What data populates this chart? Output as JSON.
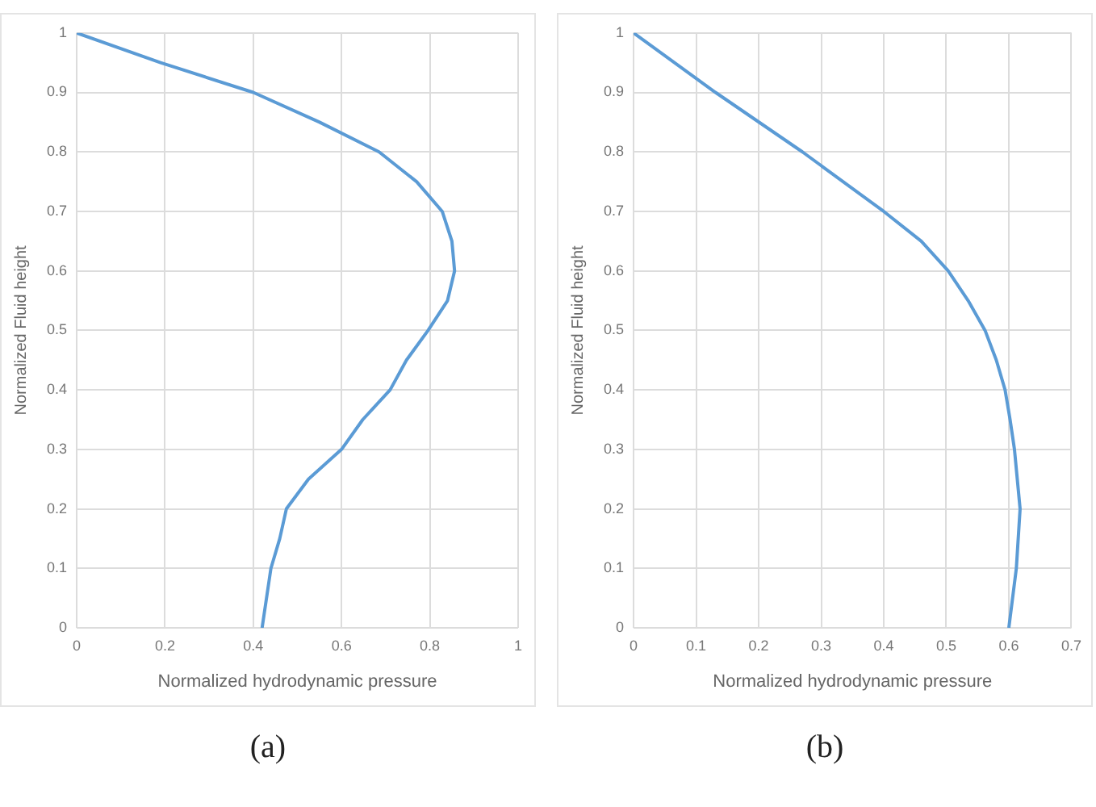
{
  "chart_data": [
    {
      "type": "line",
      "xlabel": "Normalized hydrodynamic pressure",
      "ylabel": "Normalized Fluid height",
      "annotations": [
        "(a)"
      ],
      "series": [
        {
          "color": "#5b9bd5",
          "x": [
            0.42,
            0.44,
            0.46,
            0.475,
            0.525,
            0.6,
            0.648,
            0.71,
            0.747,
            0.796,
            0.84,
            0.856,
            0.85,
            0.828,
            0.77,
            0.685,
            0.55,
            0.4,
            0.19,
            0
          ],
          "values": [
            0,
            0.1,
            0.15,
            0.2,
            0.25,
            0.3,
            0.35,
            0.4,
            0.45,
            0.5,
            0.55,
            0.6,
            0.65,
            0.7,
            0.75,
            0.8,
            0.85,
            0.9,
            0.95,
            1
          ]
        }
      ],
      "xlim": [
        0,
        1
      ],
      "xticks": [
        0,
        0.2,
        0.4,
        0.6,
        0.8,
        1
      ],
      "ylim": [
        0,
        1
      ],
      "yticks": [
        0,
        0.1,
        0.2,
        0.3,
        0.4,
        0.5,
        0.6,
        0.7,
        0.8,
        0.9,
        1
      ],
      "grid": true,
      "marker": "none",
      "line_style": "solid"
    },
    {
      "type": "line",
      "xlabel": "Normalized hydrodynamic pressure",
      "ylabel": "Normalized Fluid height",
      "annotations": [
        "(b)"
      ],
      "series": [
        {
          "color": "#5b9bd5",
          "x": [
            0.6,
            0.612,
            0.618,
            0.609,
            0.602,
            0.594,
            0.58,
            0.562,
            0.535,
            0.503,
            0.46,
            0.4,
            0.27,
            0.131,
            0
          ],
          "values": [
            0,
            0.1,
            0.2,
            0.3,
            0.35,
            0.4,
            0.45,
            0.5,
            0.55,
            0.6,
            0.65,
            0.7,
            0.8,
            0.9,
            1
          ]
        }
      ],
      "xlim": [
        0,
        0.7
      ],
      "xticks": [
        0,
        0.1,
        0.2,
        0.3,
        0.4,
        0.5,
        0.6,
        0.7
      ],
      "ylim": [
        0,
        1
      ],
      "yticks": [
        0,
        0.1,
        0.2,
        0.3,
        0.4,
        0.5,
        0.6,
        0.7,
        0.8,
        0.9,
        1
      ],
      "grid": true,
      "marker": "none",
      "line_style": "solid"
    }
  ]
}
